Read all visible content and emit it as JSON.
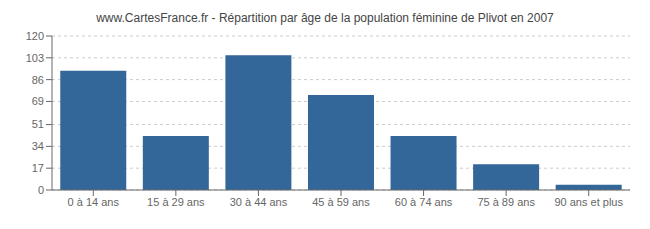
{
  "chart_data": {
    "type": "bar",
    "title": "www.CartesFrance.fr - Répartition par âge de la population féminine de Plivot en 2007",
    "categories": [
      "0 à 14 ans",
      "15 à 29 ans",
      "30 à 44 ans",
      "45 à 59 ans",
      "60 à 74 ans",
      "75 à 89 ans",
      "90 ans et plus"
    ],
    "values": [
      93,
      42,
      105,
      74,
      42,
      20,
      4
    ],
    "color": "#336699",
    "ylim": [
      0,
      120
    ],
    "yticks": [
      0,
      17,
      34,
      51,
      69,
      86,
      103,
      120
    ],
    "grid": true
  }
}
